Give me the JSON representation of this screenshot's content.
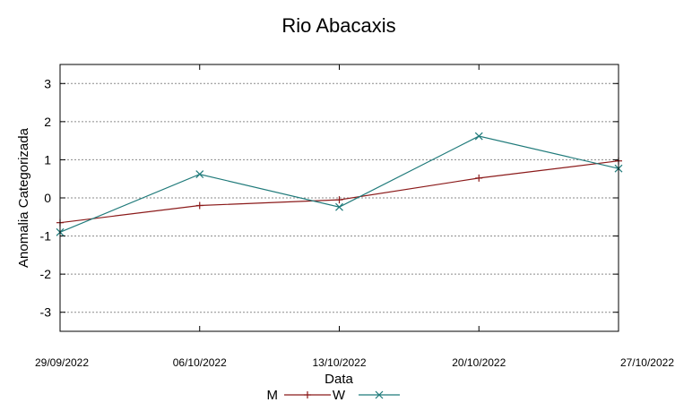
{
  "chart_data": {
    "type": "line",
    "title": "Rio Abacaxis",
    "xlabel": "Data",
    "ylabel": "Anomalia Categorizada",
    "categories": [
      "29/09/2022",
      "06/10/2022",
      "13/10/2022",
      "20/10/2022",
      "27/10/2022"
    ],
    "ylim": [
      -3.5,
      3.5
    ],
    "yticks": [
      3,
      2,
      1,
      0,
      -1,
      -2,
      -3
    ],
    "yticklabels": [
      "3",
      "2",
      "1",
      "0",
      "-1",
      "-2",
      "-3"
    ],
    "grid": true,
    "legend_position": "bottom-center",
    "series": [
      {
        "name": "M",
        "color": "#8b1a1a",
        "marker": "plus",
        "values": [
          -0.65,
          -0.2,
          -0.05,
          0.52,
          0.97
        ]
      },
      {
        "name": "W",
        "color": "#1f7a7a",
        "marker": "cross",
        "values": [
          -0.9,
          0.62,
          -0.24,
          1.62,
          0.77
        ]
      }
    ]
  }
}
